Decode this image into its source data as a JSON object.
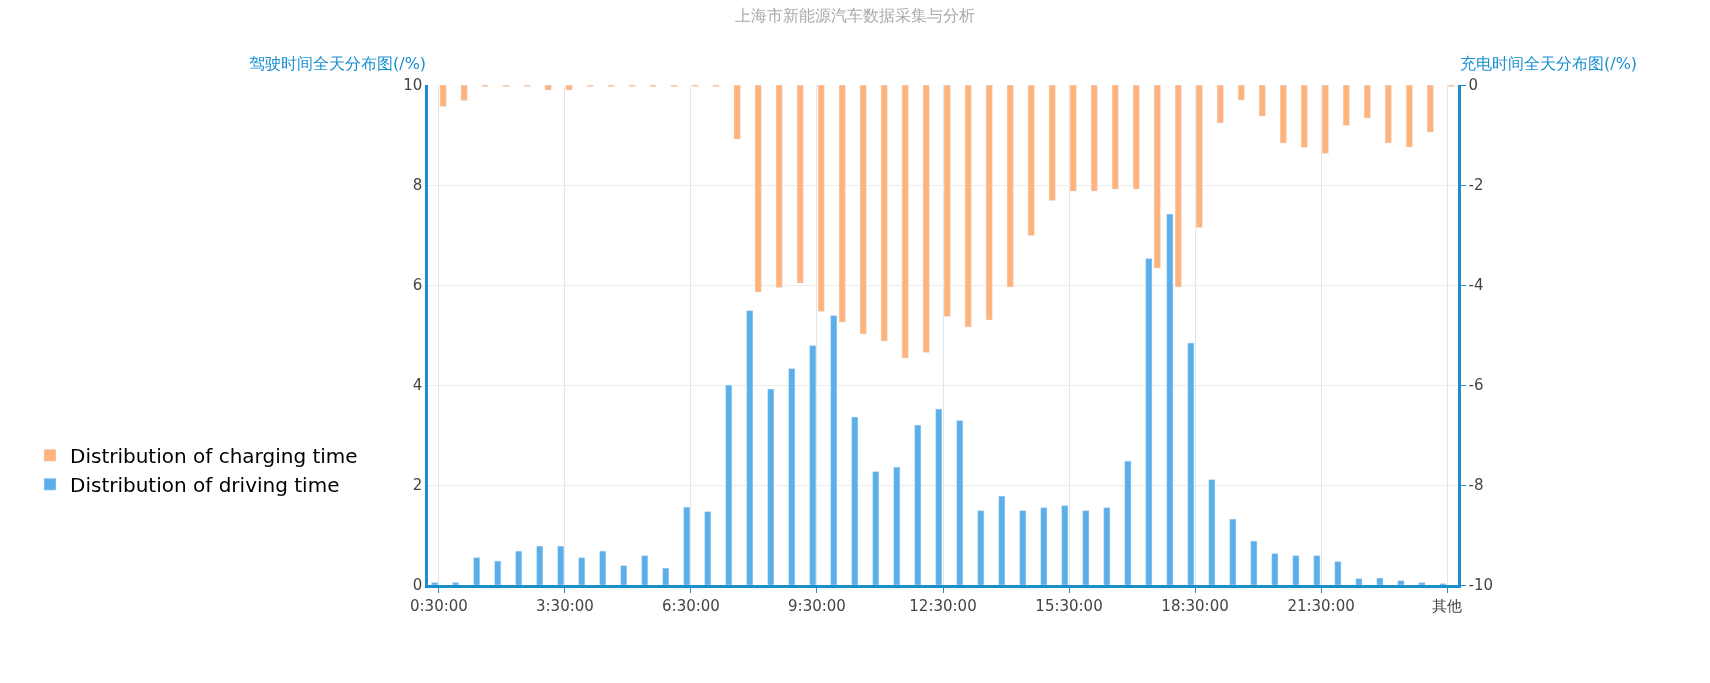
{
  "chart_data": {
    "type": "bar",
    "title": "上海市新能源汽车数据采集与分析",
    "ylabel": "驾驶时间全天分布图(/%)",
    "y2label": "充电时间全天分布图(/%)",
    "categories": [
      "0:30:00",
      null,
      null,
      null,
      null,
      null,
      "3:30:00",
      null,
      null,
      null,
      null,
      null,
      "6:30:00",
      null,
      null,
      null,
      null,
      null,
      "9:30:00",
      null,
      null,
      null,
      null,
      null,
      "12:30:00",
      null,
      null,
      null,
      null,
      null,
      "15:30:00",
      null,
      null,
      null,
      null,
      null,
      "18:30:00",
      null,
      null,
      null,
      null,
      null,
      "21:30:00",
      null,
      null,
      null,
      null,
      null,
      "其他"
    ],
    "series": [
      {
        "name": "Distribution of charging time",
        "color": "#ffb27a",
        "axis": "y2",
        "values": [
          -0.43,
          -0.31,
          -0.03,
          -0.03,
          -0.03,
          -0.1,
          -0.1,
          -0.03,
          -0.03,
          -0.03,
          -0.03,
          -0.03,
          -0.03,
          -0.03,
          -1.08,
          -4.14,
          -4.05,
          -3.96,
          -4.53,
          -4.74,
          -4.98,
          -5.12,
          -5.46,
          -5.35,
          -4.63,
          -4.84,
          -4.7,
          -4.04,
          -3.01,
          -2.31,
          -2.12,
          -2.12,
          -2.08,
          -2.08,
          -3.66,
          -4.04,
          -2.85,
          -0.76,
          -0.3,
          -0.62,
          -1.16,
          -1.25,
          -1.37,
          -0.81,
          -0.66,
          -1.16,
          -1.24,
          -0.94,
          -0.03
        ]
      },
      {
        "name": "Distribution of driving time",
        "color": "#5aaeea",
        "values": [
          0.05,
          0.05,
          0.55,
          0.48,
          0.68,
          0.78,
          0.78,
          0.55,
          0.68,
          0.39,
          0.59,
          0.34,
          1.56,
          1.47,
          4.0,
          5.49,
          3.92,
          4.33,
          4.79,
          5.39,
          3.36,
          2.27,
          2.36,
          3.2,
          3.52,
          3.29,
          1.49,
          1.78,
          1.49,
          1.55,
          1.59,
          1.49,
          1.55,
          2.48,
          6.53,
          7.42,
          4.84,
          2.11,
          1.32,
          0.88,
          0.63,
          0.59,
          0.59,
          0.47,
          0.13,
          0.14,
          0.09,
          0.05,
          0.03
        ]
      }
    ],
    "ylim": [
      0,
      10
    ],
    "yticks": [
      0,
      2,
      4,
      6,
      8,
      10
    ],
    "y2lim": [
      -10,
      0
    ],
    "y2ticks": [
      -10,
      -8,
      -6,
      -4,
      -2,
      0
    ],
    "grid": true,
    "legend": "left"
  }
}
